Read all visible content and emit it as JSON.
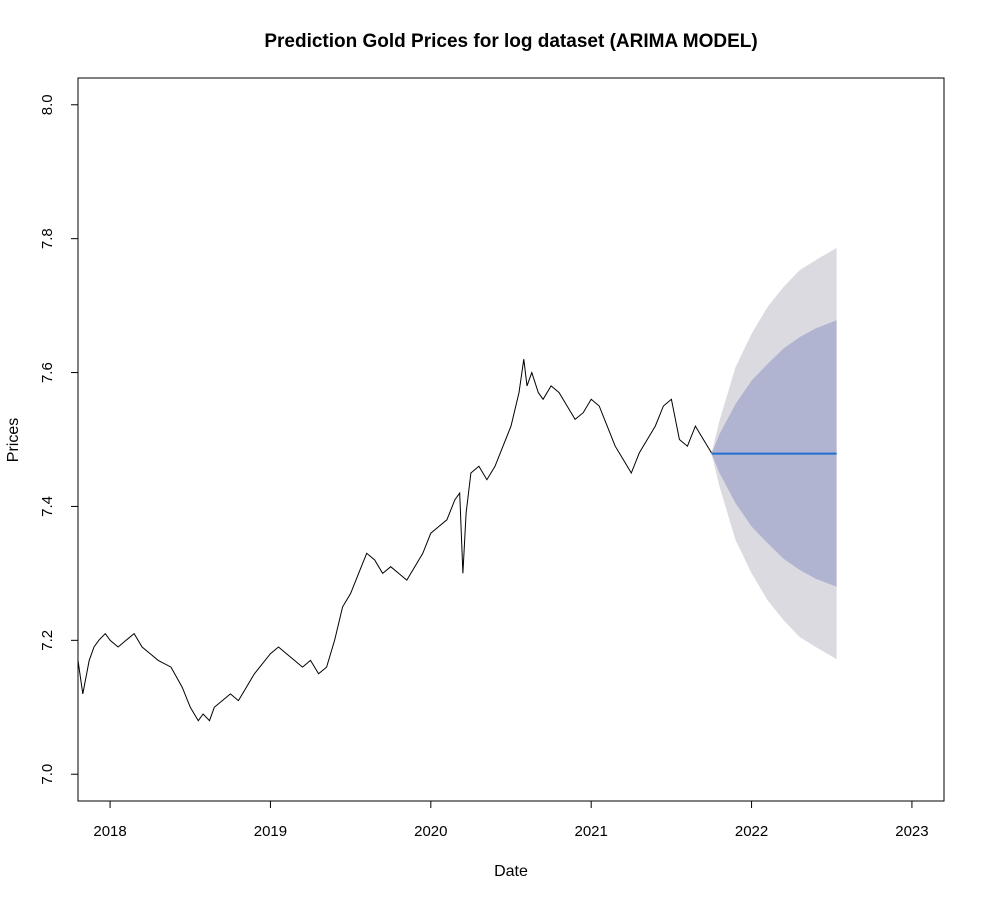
{
  "chart_data": {
    "type": "line",
    "title": "Prediction Gold Prices for log dataset (ARIMA MODEL)",
    "xlabel": "Date",
    "ylabel": "Prices",
    "xlim": [
      2017.8,
      2023.2
    ],
    "ylim": [
      6.96,
      8.04
    ],
    "x_ticks": [
      "2018",
      "2019",
      "2020",
      "2021",
      "2022",
      "2023"
    ],
    "y_ticks": [
      "7.0",
      "7.2",
      "7.4",
      "7.6",
      "7.8",
      "8.0"
    ],
    "grid": false,
    "legend": "none",
    "colors": {
      "history": "#000000",
      "forecast": "#1f6fd0",
      "band_95": "#dadae0",
      "band_80": "#b1b4d1"
    },
    "series": [
      {
        "role": "history",
        "x": [
          2017.8,
          2017.83,
          2017.87,
          2017.9,
          2017.93,
          2017.97,
          2018.0,
          2018.05,
          2018.1,
          2018.15,
          2018.2,
          2018.25,
          2018.3,
          2018.38,
          2018.45,
          2018.5,
          2018.55,
          2018.58,
          2018.62,
          2018.65,
          2018.7,
          2018.75,
          2018.8,
          2018.85,
          2018.9,
          2019.0,
          2019.05,
          2019.1,
          2019.15,
          2019.2,
          2019.25,
          2019.3,
          2019.35,
          2019.4,
          2019.45,
          2019.5,
          2019.55,
          2019.6,
          2019.65,
          2019.7,
          2019.75,
          2019.8,
          2019.85,
          2019.9,
          2019.95,
          2020.0,
          2020.05,
          2020.1,
          2020.15,
          2020.18,
          2020.2,
          2020.22,
          2020.25,
          2020.3,
          2020.35,
          2020.4,
          2020.45,
          2020.5,
          2020.55,
          2020.58,
          2020.6,
          2020.63,
          2020.67,
          2020.7,
          2020.75,
          2020.8,
          2020.85,
          2020.9,
          2020.95,
          2021.0,
          2021.05,
          2021.1,
          2021.15,
          2021.2,
          2021.25,
          2021.3,
          2021.35,
          2021.4,
          2021.45,
          2021.5,
          2021.55,
          2021.6,
          2021.65,
          2021.7,
          2021.75
        ],
        "y": [
          7.17,
          7.12,
          7.17,
          7.19,
          7.2,
          7.21,
          7.2,
          7.19,
          7.2,
          7.21,
          7.19,
          7.18,
          7.17,
          7.16,
          7.13,
          7.1,
          7.08,
          7.09,
          7.08,
          7.1,
          7.11,
          7.12,
          7.11,
          7.13,
          7.15,
          7.18,
          7.19,
          7.18,
          7.17,
          7.16,
          7.17,
          7.15,
          7.16,
          7.2,
          7.25,
          7.27,
          7.3,
          7.33,
          7.32,
          7.3,
          7.31,
          7.3,
          7.29,
          7.31,
          7.33,
          7.36,
          7.37,
          7.38,
          7.41,
          7.42,
          7.3,
          7.39,
          7.45,
          7.46,
          7.44,
          7.46,
          7.49,
          7.52,
          7.57,
          7.62,
          7.58,
          7.6,
          7.57,
          7.56,
          7.58,
          7.57,
          7.55,
          7.53,
          7.54,
          7.56,
          7.55,
          7.52,
          7.49,
          7.47,
          7.45,
          7.48,
          7.5,
          7.52,
          7.55,
          7.56,
          7.5,
          7.49,
          7.52,
          7.5,
          7.48
        ]
      },
      {
        "role": "forecast",
        "x": [
          2021.75,
          2022.1,
          2022.3,
          2022.53
        ],
        "y": [
          7.479,
          7.479,
          7.479,
          7.479
        ]
      }
    ],
    "band_80": {
      "x": [
        2021.75,
        2021.8,
        2021.9,
        2022.0,
        2022.1,
        2022.2,
        2022.3,
        2022.4,
        2022.53
      ],
      "lower": [
        7.479,
        7.45,
        7.405,
        7.37,
        7.345,
        7.322,
        7.305,
        7.292,
        7.28
      ],
      "upper": [
        7.479,
        7.508,
        7.553,
        7.588,
        7.613,
        7.636,
        7.653,
        7.666,
        7.678
      ]
    },
    "band_95": {
      "x": [
        2021.75,
        2021.8,
        2021.9,
        2022.0,
        2022.1,
        2022.2,
        2022.3,
        2022.4,
        2022.53
      ],
      "lower": [
        7.479,
        7.43,
        7.35,
        7.3,
        7.26,
        7.23,
        7.205,
        7.19,
        7.172
      ],
      "upper": [
        7.479,
        7.528,
        7.608,
        7.658,
        7.698,
        7.728,
        7.753,
        7.768,
        7.786
      ]
    }
  }
}
